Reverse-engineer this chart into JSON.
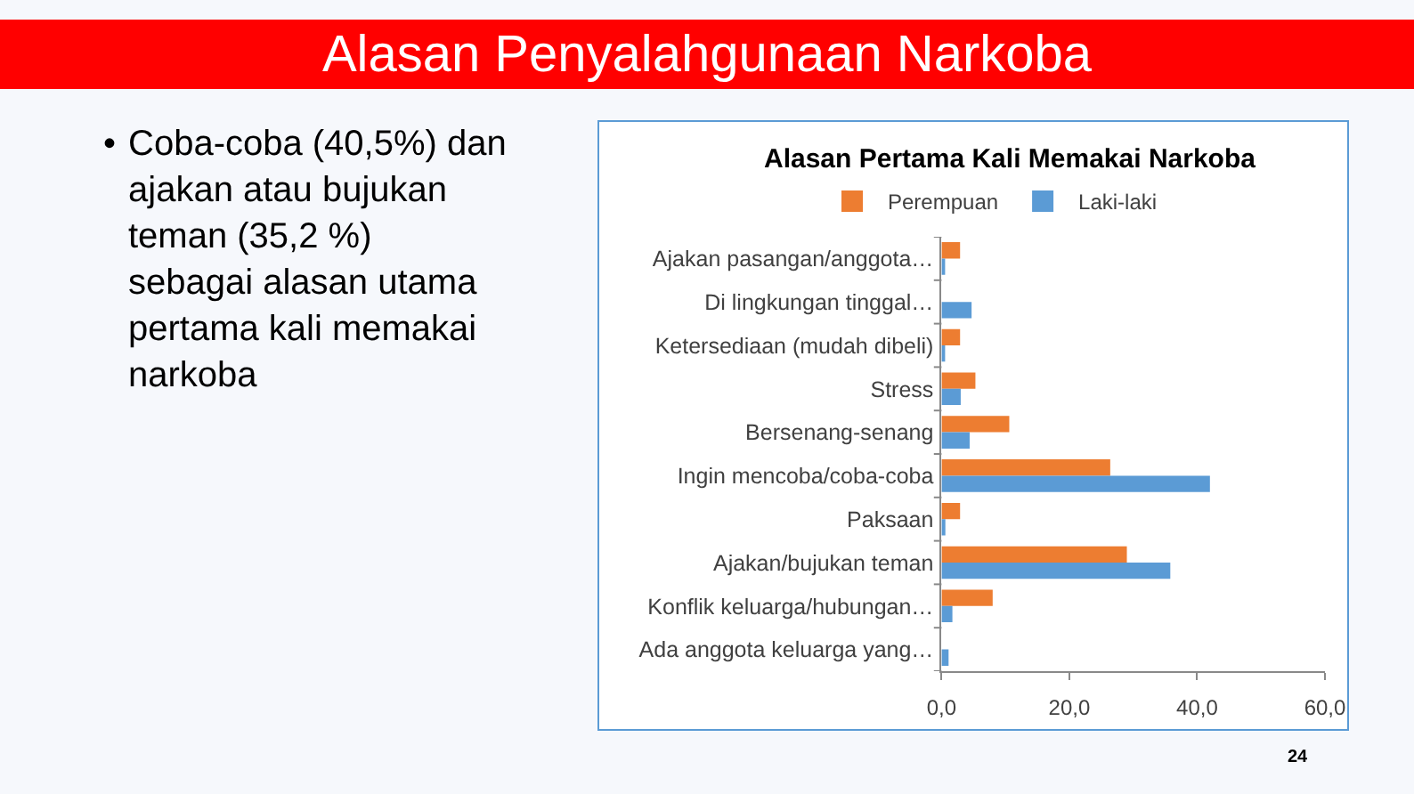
{
  "chart_data": {
    "type": "bar",
    "orientation": "horizontal",
    "title": "Alasan Penyalahgunaan Narkoba",
    "subtitle": "Alasan Pertama Kali Memakai Narkoba",
    "categories": [
      "Ajakan pasangan/anggota…",
      "Di lingkungan tinggal…",
      "Ketersediaan (mudah dibeli)",
      "Stress",
      "Bersenang-senang",
      "Ingin mencoba/coba-coba",
      "Paksaan",
      "Ajakan/bujukan teman",
      "Konflik keluarga/hubungan…",
      "Ada anggota keluarga yang…"
    ],
    "series": [
      {
        "name": "Perempuan",
        "color": "#ed7d31",
        "values": [
          2.9,
          0,
          2.9,
          5.3,
          10.6,
          26.4,
          2.9,
          29.0,
          8.0,
          0
        ]
      },
      {
        "name": "Laki-laki",
        "color": "#5b9bd5",
        "values": [
          0.4,
          4.7,
          0.4,
          3.0,
          4.4,
          42.0,
          0.6,
          35.8,
          1.7,
          1.1
        ]
      }
    ],
    "xlim": [
      0,
      60
    ],
    "xticks": [
      {
        "value": 0,
        "label": "0,0"
      },
      {
        "value": 20,
        "label": "20,0"
      },
      {
        "value": 40,
        "label": "40,0"
      },
      {
        "value": 60,
        "label": "60,0"
      }
    ],
    "legend": "top",
    "annotations": [
      "• Coba-coba (40,5%) dan ajakan atau bujukan teman (35,2 %) sebagai alasan utama pertama kali memakai narkoba",
      "24"
    ]
  }
}
